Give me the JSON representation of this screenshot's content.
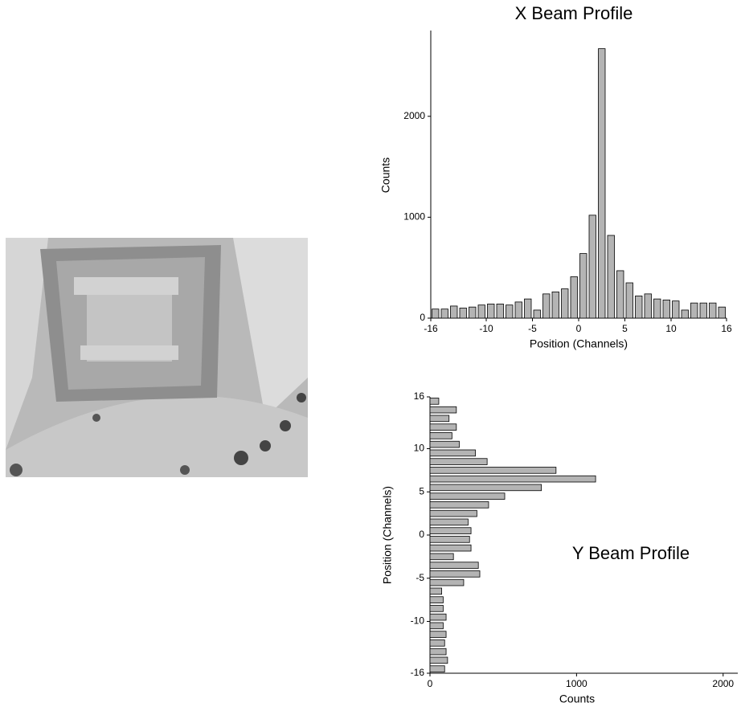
{
  "chart_data": [
    {
      "type": "histogram",
      "orientation": "vertical",
      "title": "X Beam Profile",
      "x_label": "Position (Channels)",
      "y_label": "Counts",
      "bins": [
        -16,
        -15,
        -14,
        -13,
        -12,
        -11,
        -10,
        -9,
        -8,
        -7,
        -6,
        -5,
        -4,
        -3,
        -2,
        -1,
        0,
        1,
        2,
        3,
        4,
        5,
        6,
        7,
        8,
        9,
        10,
        11,
        12,
        13,
        14,
        15,
        16
      ],
      "values": [
        90,
        90,
        120,
        100,
        110,
        130,
        140,
        140,
        130,
        160,
        190,
        80,
        240,
        260,
        290,
        410,
        640,
        1020,
        2670,
        820,
        470,
        350,
        220,
        240,
        190,
        180,
        170,
        80,
        150,
        150,
        150,
        110
      ],
      "color": "#b4b4b4",
      "xlim": [
        -16,
        16
      ],
      "xticks": [
        -16,
        -10,
        -5,
        0,
        5,
        10,
        16
      ],
      "ylim": [
        0,
        2850
      ],
      "yticks": [
        0,
        1000,
        2000
      ]
    },
    {
      "type": "histogram",
      "orientation": "horizontal",
      "title": "Y Beam Profile",
      "x_label": "Counts",
      "y_label": "Position (Channels)",
      "bins": [
        -16,
        -15,
        -14,
        -13,
        -12,
        -11,
        -10,
        -9,
        -8,
        -7,
        -6,
        -5,
        -4,
        -3,
        -2,
        -1,
        0,
        1,
        2,
        3,
        4,
        5,
        6,
        7,
        8,
        9,
        10,
        11,
        12,
        13,
        14,
        15,
        16
      ],
      "values": [
        100,
        120,
        110,
        100,
        110,
        90,
        110,
        90,
        90,
        80,
        230,
        340,
        330,
        160,
        280,
        270,
        280,
        260,
        320,
        400,
        510,
        760,
        1130,
        860,
        390,
        310,
        200,
        150,
        180,
        130,
        180,
        60
      ],
      "color": "#b4b4b4",
      "xlim": [
        0,
        2100
      ],
      "xticks": [
        0,
        1000,
        2000
      ],
      "ylim": [
        -16,
        16
      ],
      "yticks": [
        -16,
        -10,
        -5,
        0,
        5,
        10,
        16
      ]
    }
  ]
}
